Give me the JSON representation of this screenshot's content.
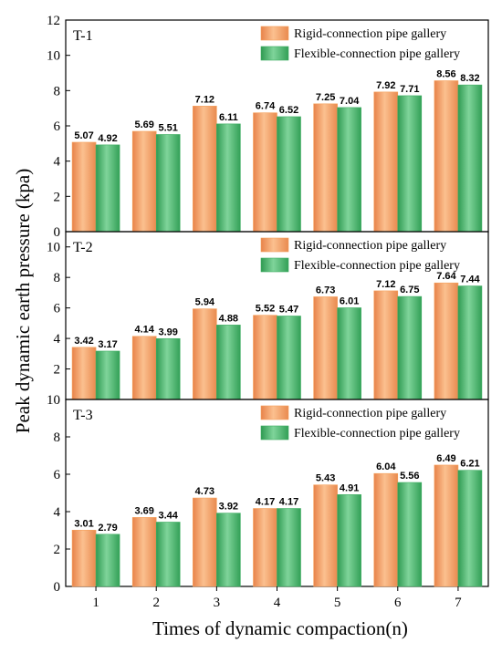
{
  "chart_data": {
    "type": "bar",
    "ylabel": "Peak dynamic earth pressure (kpa)",
    "xlabel": "Times of dynamic compaction(n)",
    "categories": [
      "1",
      "2",
      "3",
      "4",
      "5",
      "6",
      "7"
    ],
    "legend_position": "top-right",
    "grid": false,
    "colors": {
      "rigid": "#F5A15C",
      "flexible": "#3FAE62"
    },
    "panels": [
      {
        "title": "T-1",
        "ylim": [
          0,
          12
        ],
        "yticks": [
          "0",
          "2",
          "4",
          "6",
          "8",
          "10",
          "12"
        ],
        "series": [
          {
            "name": "Rigid-connection pipe gallery",
            "values": [
              5.07,
              5.69,
              7.12,
              6.74,
              7.25,
              7.92,
              8.56
            ],
            "labels": [
              "5.07",
              "5.69",
              "7.12",
              "6.74",
              "7.25",
              "7.92",
              "8.56"
            ]
          },
          {
            "name": "Flexible-connection pipe gallery",
            "values": [
              4.92,
              5.51,
              6.11,
              6.52,
              7.04,
              7.71,
              8.32
            ],
            "labels": [
              "4.92",
              "5.51",
              "6.11",
              "6.52",
              "7.04",
              "7.71",
              "8.32"
            ]
          }
        ]
      },
      {
        "title": "T-2",
        "ylim": [
          0,
          11
        ],
        "yticks": [
          "2",
          "4",
          "6",
          "8",
          "10"
        ],
        "series": [
          {
            "name": "Rigid-connection pipe gallery",
            "values": [
              3.42,
              4.14,
              5.94,
              5.52,
              6.73,
              7.12,
              7.64
            ],
            "labels": [
              "3.42",
              "4.14",
              "5.94",
              "5.52",
              "6.73",
              "7.12",
              "7.64"
            ]
          },
          {
            "name": "Flexible-connection pipe gallery",
            "values": [
              3.17,
              3.99,
              4.88,
              5.47,
              6.01,
              6.75,
              7.44
            ],
            "labels": [
              "3.17",
              "3.99",
              "4.88",
              "5.47",
              "6.01",
              "6.75",
              "7.44"
            ]
          }
        ]
      },
      {
        "title": "T-3",
        "ylim": [
          0,
          10
        ],
        "yticks": [
          "0",
          "2",
          "4",
          "6",
          "8",
          "10"
        ],
        "series": [
          {
            "name": "Rigid-connection pipe gallery",
            "values": [
              3.01,
              3.69,
              4.73,
              4.17,
              5.43,
              6.04,
              6.49
            ],
            "labels": [
              "3.01",
              "3.69",
              "4.73",
              "4.17",
              "5.43",
              "6.04",
              "6.49"
            ]
          },
          {
            "name": "Flexible-connection pipe gallery",
            "values": [
              2.79,
              3.44,
              3.92,
              4.17,
              4.91,
              5.56,
              6.21
            ],
            "labels": [
              "2.79",
              "3.44",
              "3.92",
              "4.17",
              "4.91",
              "5.56",
              "6.21"
            ]
          }
        ]
      }
    ]
  }
}
